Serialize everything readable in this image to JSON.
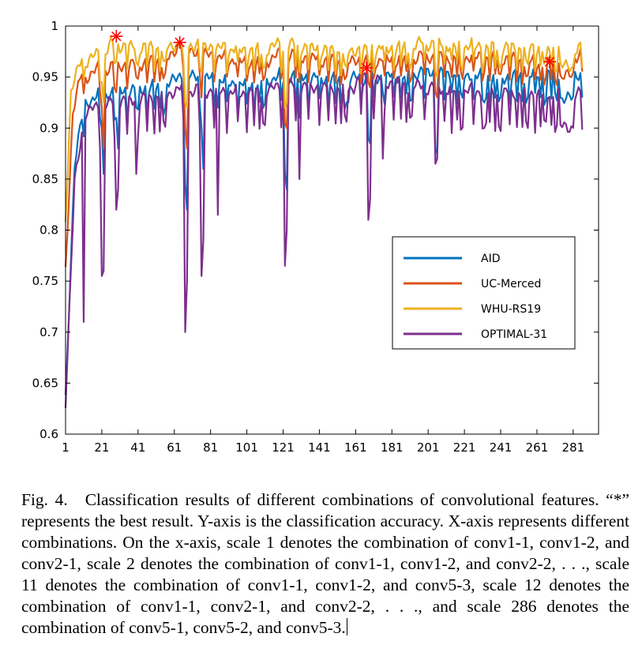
{
  "chart_data": {
    "type": "line",
    "title": "",
    "xlabel": "",
    "ylabel": "",
    "xlim": [
      1,
      295
    ],
    "ylim": [
      0.6,
      1.0
    ],
    "x_ticks": [
      1,
      21,
      41,
      61,
      81,
      101,
      121,
      141,
      161,
      181,
      201,
      221,
      241,
      261,
      281
    ],
    "y_ticks": [
      "0.6",
      "0.65",
      "0.7",
      "0.75",
      "0.8",
      "0.85",
      "0.9",
      "0.95",
      "1"
    ],
    "grid": false,
    "legend_position": "right-center",
    "group_bounds": [
      1,
      11,
      20,
      28,
      35,
      41,
      46,
      50,
      53,
      55,
      56,
      66,
      75,
      83,
      90,
      96,
      101,
      105,
      108,
      110,
      111,
      120,
      128,
      135,
      141,
      146,
      150,
      153,
      155,
      156,
      164,
      171,
      177,
      182,
      186,
      189,
      191,
      192,
      199,
      205,
      210,
      214,
      217,
      219,
      220,
      226,
      231,
      235,
      238,
      240,
      241,
      246,
      250,
      253,
      255,
      256,
      260,
      263,
      265,
      266,
      269,
      271,
      272,
      274,
      275,
      276,
      277,
      278,
      279,
      280,
      281,
      286
    ],
    "series": [
      {
        "name": "AID",
        "color": "#0072BD",
        "anchors": [
          [
            1,
            0.64
          ],
          [
            6,
            0.87
          ],
          [
            12,
            0.93
          ],
          [
            20,
            0.935
          ],
          [
            30,
            0.94
          ],
          [
            45,
            0.945
          ],
          [
            60,
            0.95
          ],
          [
            66,
            0.955
          ],
          [
            100,
            0.948
          ],
          [
            125,
            0.955
          ],
          [
            160,
            0.953
          ],
          [
            200,
            0.96
          ],
          [
            240,
            0.955
          ],
          [
            270,
            0.96
          ],
          [
            290,
            0.958
          ]
        ],
        "dips": [
          [
            21,
            0.9
          ],
          [
            22,
            0.855
          ],
          [
            29,
            0.91
          ],
          [
            30,
            0.88
          ],
          [
            40,
            0.92
          ],
          [
            67,
            0.845
          ],
          [
            68,
            0.82
          ],
          [
            76,
            0.9
          ],
          [
            77,
            0.86
          ],
          [
            85,
            0.92
          ],
          [
            122,
            0.855
          ],
          [
            123,
            0.84
          ],
          [
            130,
            0.91
          ],
          [
            157,
            0.925
          ],
          [
            168,
            0.89
          ],
          [
            169,
            0.885
          ],
          [
            176,
            0.935
          ],
          [
            205,
            0.875
          ],
          [
            206,
            0.88
          ],
          [
            214,
            0.935
          ],
          [
            232,
            0.925
          ],
          [
            233,
            0.93
          ]
        ]
      },
      {
        "name": "UC-Merced",
        "color": "#D95319",
        "anchors": [
          [
            1,
            0.77
          ],
          [
            5,
            0.92
          ],
          [
            10,
            0.955
          ],
          [
            20,
            0.96
          ],
          [
            30,
            0.965
          ],
          [
            45,
            0.97
          ],
          [
            60,
            0.975
          ],
          [
            64,
            0.985
          ],
          [
            66,
            0.98
          ],
          [
            100,
            0.97
          ],
          [
            125,
            0.975
          ],
          [
            160,
            0.97
          ],
          [
            200,
            0.975
          ],
          [
            240,
            0.975
          ],
          [
            265,
            0.97
          ],
          [
            290,
            0.98
          ]
        ],
        "dips": [
          [
            21,
            0.92
          ],
          [
            22,
            0.88
          ],
          [
            29,
            0.935
          ],
          [
            40,
            0.95
          ],
          [
            67,
            0.9
          ],
          [
            68,
            0.88
          ],
          [
            76,
            0.93
          ],
          [
            122,
            0.905
          ],
          [
            123,
            0.9
          ],
          [
            130,
            0.945
          ],
          [
            168,
            0.945
          ],
          [
            169,
            0.94
          ],
          [
            205,
            0.935
          ],
          [
            206,
            0.93
          ],
          [
            232,
            0.955
          ]
        ],
        "stars": [
          [
            64,
            0.984
          ]
        ]
      },
      {
        "name": "WHU-RS19",
        "color": "#EDB120",
        "anchors": [
          [
            1,
            0.82
          ],
          [
            4,
            0.94
          ],
          [
            10,
            0.97
          ],
          [
            20,
            0.975
          ],
          [
            29,
            0.99
          ],
          [
            31,
            0.985
          ],
          [
            45,
            0.985
          ],
          [
            60,
            0.985
          ],
          [
            66,
            0.985
          ],
          [
            100,
            0.982
          ],
          [
            125,
            0.985
          ],
          [
            160,
            0.98
          ],
          [
            200,
            0.988
          ],
          [
            240,
            0.985
          ],
          [
            270,
            0.985
          ],
          [
            290,
            0.983
          ]
        ],
        "dips": [
          [
            21,
            0.945
          ],
          [
            22,
            0.925
          ],
          [
            29,
            0.965
          ],
          [
            40,
            0.965
          ],
          [
            67,
            0.925
          ],
          [
            68,
            0.92
          ],
          [
            76,
            0.955
          ],
          [
            122,
            0.92
          ],
          [
            123,
            0.925
          ],
          [
            130,
            0.955
          ],
          [
            168,
            0.965
          ],
          [
            169,
            0.96
          ],
          [
            205,
            0.955
          ],
          [
            206,
            0.95
          ],
          [
            232,
            0.965
          ]
        ],
        "stars": [
          [
            29,
            0.99
          ]
        ]
      },
      {
        "name": "OPTIMAL-31",
        "color": "#7E2F8E",
        "anchors": [
          [
            1,
            0.64
          ],
          [
            6,
            0.85
          ],
          [
            12,
            0.92
          ],
          [
            20,
            0.925
          ],
          [
            30,
            0.93
          ],
          [
            45,
            0.935
          ],
          [
            60,
            0.94
          ],
          [
            66,
            0.94
          ],
          [
            100,
            0.94
          ],
          [
            125,
            0.945
          ],
          [
            160,
            0.945
          ],
          [
            165,
            0.955
          ],
          [
            200,
            0.945
          ],
          [
            240,
            0.94
          ],
          [
            270,
            0.94
          ],
          [
            290,
            0.938
          ]
        ],
        "dips": [
          [
            11,
            0.71
          ],
          [
            21,
            0.755
          ],
          [
            22,
            0.76
          ],
          [
            29,
            0.82
          ],
          [
            30,
            0.84
          ],
          [
            40,
            0.855
          ],
          [
            67,
            0.7
          ],
          [
            68,
            0.75
          ],
          [
            76,
            0.755
          ],
          [
            77,
            0.79
          ],
          [
            85,
            0.815
          ],
          [
            122,
            0.765
          ],
          [
            123,
            0.8
          ],
          [
            130,
            0.85
          ],
          [
            168,
            0.81
          ],
          [
            169,
            0.83
          ],
          [
            176,
            0.87
          ],
          [
            205,
            0.865
          ],
          [
            206,
            0.87
          ],
          [
            214,
            0.895
          ],
          [
            232,
            0.9
          ],
          [
            233,
            0.905
          ]
        ],
        "stars": [
          [
            167,
            0.959
          ],
          [
            268,
            0.965
          ]
        ]
      }
    ]
  },
  "caption": {
    "fig_num": "Fig. 4.",
    "text": "Classification results of different combinations of convolutional features. “*” represents the best result. Y-axis is the classification accuracy. X-axis represents different combinations. On the x-axis, scale 1 denotes the combination of conv1-1, conv1-2, and conv2-1, scale 2 denotes the combination of conv1-1, conv1-2, and conv2-2, . . ., scale 11 denotes the combination of conv1-1, conv1-2, and conv5-3, scale 12 denotes the combination of conv1-1, conv2-1, and conv2-2, . . ., and scale 286 denotes the combination of conv5-1, conv5-2, and conv5-3."
  }
}
